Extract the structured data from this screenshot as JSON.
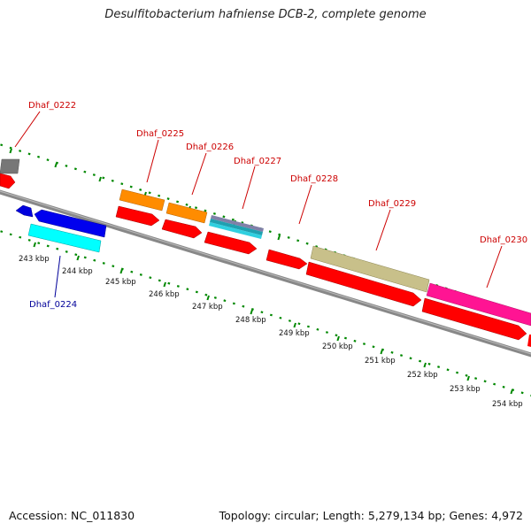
{
  "title": "Desulfitobacterium hafniense DCB-2, complete genome",
  "accession": "Accession: NC_011830",
  "summary": "Topology: circular; Length: 5,279,134 bp; Genes: 4,972",
  "colors": {
    "label_forward": "#cc0000",
    "label_reverse": "#000099",
    "tick": "#008800",
    "backbone": "#888888"
  },
  "ruler_labels": [
    "243 kbp",
    "244 kbp",
    "245 kbp",
    "246 kbp",
    "247 kbp",
    "248 kbp",
    "249 kbp",
    "250 kbp",
    "251 kbp",
    "252 kbp",
    "253 kbp",
    "254 kbp"
  ],
  "gene_labels": [
    {
      "id": "Dhaf_0222",
      "strand": "forward"
    },
    {
      "id": "Dhaf_0224",
      "strand": "reverse"
    },
    {
      "id": "Dhaf_0225",
      "strand": "forward"
    },
    {
      "id": "Dhaf_0226",
      "strand": "forward"
    },
    {
      "id": "Dhaf_0227",
      "strand": "forward"
    },
    {
      "id": "Dhaf_0228",
      "strand": "forward"
    },
    {
      "id": "Dhaf_0229",
      "strand": "forward"
    },
    {
      "id": "Dhaf_0230",
      "strand": "forward"
    }
  ]
}
